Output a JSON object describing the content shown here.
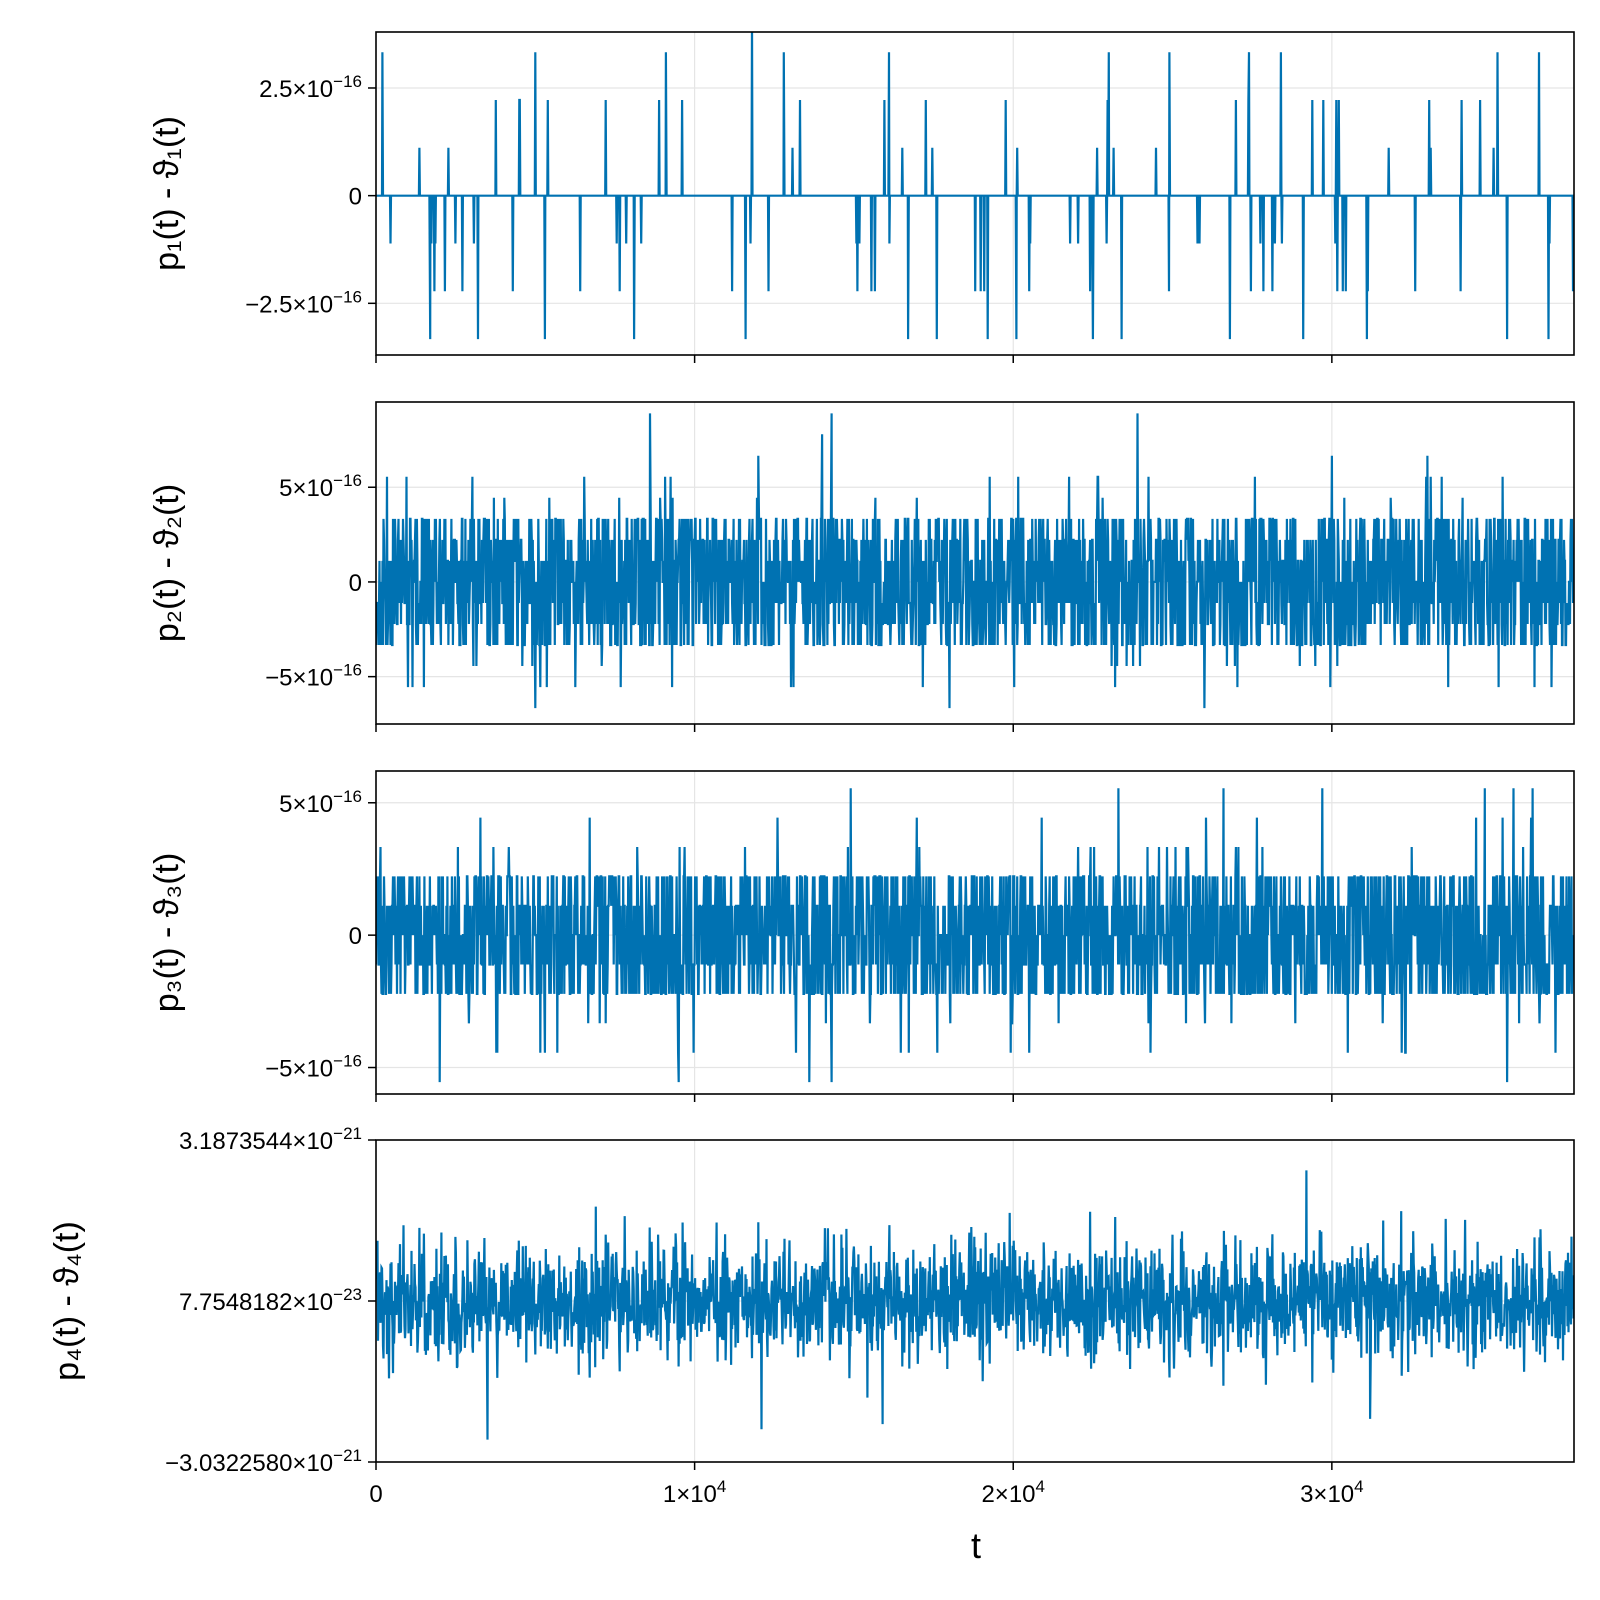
{
  "chart_data": {
    "type": "line",
    "line_color": "#0072b2",
    "grid": true,
    "shared_x": {
      "label": "t",
      "range": [
        0,
        37600
      ],
      "ticks": [
        {
          "value": 0,
          "mantissa": "0",
          "exponent": ""
        },
        {
          "value": 10000,
          "mantissa": "1×10",
          "exponent": "4"
        },
        {
          "value": 20000,
          "mantissa": "2×10",
          "exponent": "4"
        },
        {
          "value": 30000,
          "mantissa": "3×10",
          "exponent": "4"
        }
      ]
    },
    "panels": [
      {
        "ylabel": "p₁(t) - ϑ₁(t)",
        "scale": 1e-16,
        "ylim": [
          -3.7,
          3.8
        ],
        "ticks": [
          {
            "value": 2.5,
            "mantissa": "2.5×10",
            "exponent": "−16"
          },
          {
            "value": 0,
            "mantissa": "0",
            "exponent": ""
          },
          {
            "value": -2.5,
            "mantissa": "−2.5×10",
            "exponent": "−16"
          }
        ],
        "levels": [
          -3.33,
          -2.22,
          -1.11,
          0,
          1.11,
          2.22,
          3.33
        ],
        "core_level": 1,
        "spikes": [
          [
            0.2,
            3.33
          ],
          [
            1.7,
            -3.33
          ],
          [
            5,
            3.33
          ],
          [
            3.2,
            -3.33
          ],
          [
            5.3,
            -3.33
          ],
          [
            8.1,
            -3.33
          ],
          [
            9.1,
            3.33
          ],
          [
            11.6,
            -3.33
          ],
          [
            11.8,
            4.1
          ],
          [
            12.8,
            3.33
          ],
          [
            16.1,
            3.33
          ],
          [
            16.7,
            -3.33
          ],
          [
            17.6,
            -3.33
          ],
          [
            19.2,
            -3.33
          ],
          [
            20.1,
            -3.33
          ],
          [
            22.5,
            -3.33
          ],
          [
            23,
            3.33
          ],
          [
            23.4,
            -3.33
          ],
          [
            24.9,
            3.33
          ],
          [
            26.8,
            -3.33
          ],
          [
            27.4,
            3.33
          ],
          [
            28.4,
            3.33
          ],
          [
            29.1,
            -3.33
          ],
          [
            31.1,
            -3.33
          ],
          [
            35.2,
            3.33
          ],
          [
            35.5,
            -3.33
          ],
          [
            36.5,
            3.33
          ],
          [
            36.8,
            -3.33
          ]
        ]
      },
      {
        "ylabel": "p₂(t) - ϑ₂(t)",
        "scale": 1e-16,
        "ylim": [
          -7.5,
          9.5
        ],
        "ticks": [
          {
            "value": 5,
            "mantissa": "5×10",
            "exponent": "−16"
          },
          {
            "value": 0,
            "mantissa": "0",
            "exponent": ""
          },
          {
            "value": -5,
            "mantissa": "−5×10",
            "exponent": "−16"
          }
        ],
        "levels": [
          -6.66,
          -5.55,
          -4.44,
          -3.33,
          -2.22,
          -1.11,
          0,
          1.11,
          2.22,
          3.33,
          4.44,
          5.55,
          6.66
        ],
        "core_level": 4.3,
        "spikes": [
          [
            8.6,
            8.9
          ],
          [
            14.3,
            8.9
          ],
          [
            14.0,
            7.8
          ],
          [
            23.9,
            8.9
          ],
          [
            12.0,
            6.66
          ],
          [
            18.0,
            -6.66
          ],
          [
            30.0,
            6.66
          ],
          [
            5.0,
            -6.66
          ],
          [
            26.0,
            -6.66
          ],
          [
            33.0,
            6.66
          ]
        ]
      },
      {
        "ylabel": "p₃(t) - ϑ₃(t)",
        "scale": 1e-16,
        "ylim": [
          -6,
          6.2
        ],
        "ticks": [
          {
            "value": 5,
            "mantissa": "5×10",
            "exponent": "−16"
          },
          {
            "value": 0,
            "mantissa": "0",
            "exponent": ""
          },
          {
            "value": -5,
            "mantissa": "−5×10",
            "exponent": "−16"
          }
        ],
        "levels": [
          -5.55,
          -4.44,
          -3.33,
          -2.22,
          -1.11,
          0,
          1.11,
          2.22,
          3.33,
          4.44,
          5.55
        ],
        "core_level": 2.22,
        "spikes": [
          [
            2,
            -5.55
          ],
          [
            9.5,
            -5.55
          ],
          [
            13.6,
            -5.55
          ],
          [
            14.3,
            -5.55
          ],
          [
            14.9,
            5.55
          ],
          [
            23.3,
            5.55
          ],
          [
            26.6,
            5.55
          ],
          [
            34.8,
            5.55
          ],
          [
            35.7,
            5.55
          ],
          [
            36.3,
            5.55
          ],
          [
            35.5,
            -5.55
          ],
          [
            20.5,
            -4.44
          ],
          [
            5.3,
            -4.44
          ],
          [
            29.7,
            5.55
          ]
        ]
      },
      {
        "ylabel": "p₄(t) - ϑ₄(t)",
        "scale": 1e-21,
        "ylim": [
          -3.032258,
          3.1873544
        ],
        "ticks": [
          {
            "value": 3.1873544,
            "mantissa": "3.1873544×10",
            "exponent": "−21"
          },
          {
            "value": 0.077548182,
            "mantissa": "7.7548182×10",
            "exponent": "−23"
          },
          {
            "value": -3.032258,
            "mantissa": "−3.0322580×10",
            "exponent": "−21"
          }
        ],
        "spikes": [
          [
            29.2,
            2.6
          ],
          [
            6.9,
            1.9
          ],
          [
            12.0,
            1.6
          ],
          [
            23.2,
            1.7
          ],
          [
            3.5,
            -2.6
          ],
          [
            12.1,
            -2.4
          ],
          [
            15.9,
            -2.3
          ],
          [
            31.2,
            -2.2
          ]
        ]
      }
    ]
  }
}
